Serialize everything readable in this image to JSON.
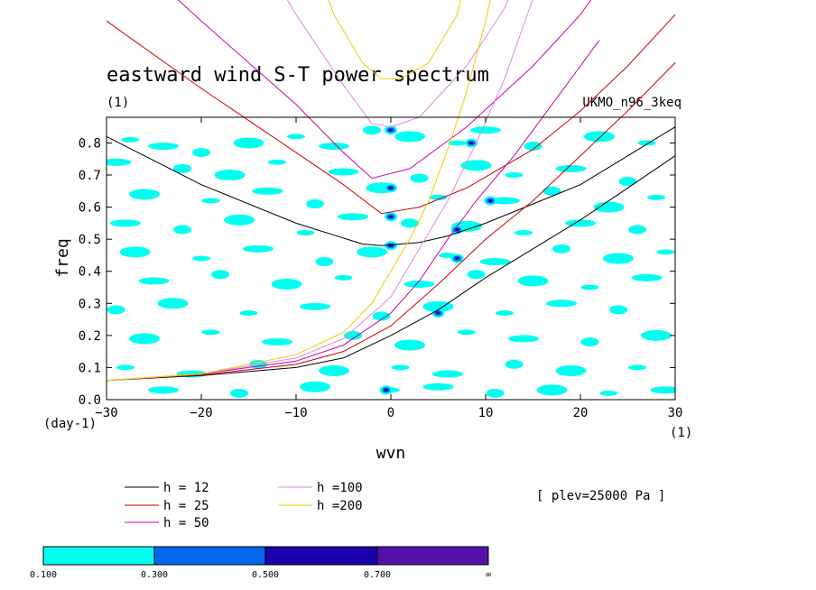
{
  "chart_data": {
    "type": "contour",
    "title": "eastward wind S-T power spectrum",
    "subtitle": "(1)",
    "dataset": "UKMO_n96_3keq",
    "note": "[ plev=25000 Pa ]",
    "xlabel": "wvn",
    "ylabel": "freq",
    "x_unit": "(1)",
    "y_unit": "(day-1)",
    "xlim": [
      -30,
      30
    ],
    "ylim": [
      0,
      0.88
    ],
    "x_ticks": [
      -30,
      -20,
      -10,
      0,
      10,
      20,
      30
    ],
    "x_tick_labels": [
      "−30",
      "−20",
      "−10",
      "0",
      "10",
      "20",
      "30"
    ],
    "y_ticks": [
      0.0,
      0.1,
      0.2,
      0.3,
      0.4,
      0.5,
      0.6,
      0.7,
      0.8
    ],
    "y_tick_labels": [
      "0.0",
      "0.1",
      "0.2",
      "0.3",
      "0.4",
      "0.5",
      "0.6",
      "0.7",
      "0.8"
    ],
    "series": [
      {
        "name": "h = 12",
        "color": "#000000",
        "curves": [
          {
            "x": [
              -30,
              -20,
              -10,
              -3,
              -1,
              3,
              6,
              10,
              20,
              30
            ],
            "y": [
              0.82,
              0.67,
              0.55,
              0.485,
              0.48,
              0.49,
              0.51,
              0.55,
              0.67,
              0.85
            ]
          },
          {
            "x": [
              -30,
              -20,
              -10,
              -5,
              0,
              5,
              10,
              15,
              20,
              25,
              30
            ],
            "y": [
              0.06,
              0.075,
              0.1,
              0.13,
              0.2,
              0.28,
              0.38,
              0.47,
              0.56,
              0.66,
              0.76
            ]
          }
        ]
      },
      {
        "name": "h = 25",
        "color": "#cc0000",
        "curves": [
          {
            "x": [
              -30,
              -20,
              -10,
              -5,
              -1,
              3,
              8,
              15,
              20,
              25,
              30
            ],
            "y": [
              1.18,
              0.97,
              0.77,
              0.67,
              0.58,
              0.6,
              0.66,
              0.78,
              0.9,
              1.04,
              1.2
            ]
          },
          {
            "x": [
              -30,
              -20,
              -10,
              -5,
              0,
              5,
              10,
              15,
              20,
              25,
              30
            ],
            "y": [
              0.06,
              0.077,
              0.11,
              0.15,
              0.23,
              0.36,
              0.5,
              0.62,
              0.76,
              0.9,
              1.05
            ]
          }
        ]
      },
      {
        "name": "h = 50",
        "color": "#cc00aa",
        "curves": [
          {
            "x": [
              -30,
              -20,
              -10,
              -5,
              -2,
              2,
              8,
              15,
              20,
              26
            ],
            "y": [
              1.45,
              1.18,
              0.92,
              0.77,
              0.69,
              0.72,
              0.85,
              1.04,
              1.2,
              1.45
            ]
          },
          {
            "x": [
              -30,
              -20,
              -10,
              -5,
              0,
              3,
              6,
              9,
              13,
              17,
              22
            ],
            "y": [
              0.06,
              0.08,
              0.12,
              0.17,
              0.27,
              0.37,
              0.5,
              0.62,
              0.76,
              0.92,
              1.12
            ]
          }
        ]
      },
      {
        "name": "h =100",
        "color": "#dd88dd",
        "curves": [
          {
            "x": [
              -15,
              -10,
              -5,
              -2,
              0,
              3,
              8,
              12,
              15
            ],
            "y": [
              1.45,
              1.2,
              0.98,
              0.86,
              0.85,
              0.88,
              1.04,
              1.22,
              1.45
            ]
          },
          {
            "x": [
              -30,
              -20,
              -10,
              -5,
              0,
              3,
              6,
              9,
              12,
              15
            ],
            "y": [
              0.06,
              0.08,
              0.13,
              0.19,
              0.32,
              0.47,
              0.62,
              0.8,
              1.0,
              1.25
            ]
          }
        ]
      },
      {
        "name": "h =200",
        "color": "#eecc00",
        "curves": [
          {
            "x": [
              -9,
              -6,
              -3,
              -1,
              1,
              4,
              7,
              9
            ],
            "y": [
              1.45,
              1.2,
              1.05,
              1.0,
              1.0,
              1.05,
              1.2,
              1.45
            ]
          },
          {
            "x": [
              -30,
              -20,
              -10,
              -5,
              -2,
              0,
              2,
              4,
              6,
              8,
              10,
              12
            ],
            "y": [
              0.06,
              0.08,
              0.14,
              0.21,
              0.3,
              0.4,
              0.5,
              0.62,
              0.78,
              0.96,
              1.18,
              1.45
            ]
          }
        ]
      }
    ],
    "colorbar": {
      "levels": [
        "0.100",
        "0.300",
        "0.500",
        "0.700",
        "∞"
      ],
      "colors": [
        "#00ffee",
        "#0066ee",
        "#1a00aa",
        "#5511aa"
      ]
    },
    "patches_level1": [
      [
        -27.5,
        0.81
      ],
      [
        -24,
        0.79
      ],
      [
        -20,
        0.77
      ],
      [
        -15,
        0.8
      ],
      [
        -10,
        0.82
      ],
      [
        -6,
        0.79
      ],
      [
        -2,
        0.84
      ],
      [
        2,
        0.82
      ],
      [
        7,
        0.8
      ],
      [
        10,
        0.84
      ],
      [
        15,
        0.79
      ],
      [
        22,
        0.82
      ],
      [
        27,
        0.8
      ],
      [
        -29,
        0.74
      ],
      [
        -22,
        0.72
      ],
      [
        -17,
        0.7
      ],
      [
        -12,
        0.74
      ],
      [
        -5,
        0.71
      ],
      [
        3,
        0.69
      ],
      [
        9,
        0.73
      ],
      [
        13,
        0.7
      ],
      [
        19,
        0.72
      ],
      [
        25,
        0.68
      ],
      [
        -26,
        0.64
      ],
      [
        -19,
        0.62
      ],
      [
        -13,
        0.65
      ],
      [
        -8,
        0.61
      ],
      [
        -1,
        0.66
      ],
      [
        5,
        0.63
      ],
      [
        12,
        0.62
      ],
      [
        17,
        0.65
      ],
      [
        23,
        0.6
      ],
      [
        28,
        0.63
      ],
      [
        -28,
        0.55
      ],
      [
        -22,
        0.53
      ],
      [
        -16,
        0.56
      ],
      [
        -9,
        0.52
      ],
      [
        -4,
        0.57
      ],
      [
        2,
        0.55
      ],
      [
        8,
        0.54
      ],
      [
        14,
        0.52
      ],
      [
        20,
        0.55
      ],
      [
        26,
        0.53
      ],
      [
        -27,
        0.46
      ],
      [
        -20,
        0.44
      ],
      [
        -14,
        0.47
      ],
      [
        -7,
        0.43
      ],
      [
        -2,
        0.46
      ],
      [
        6,
        0.45
      ],
      [
        11,
        0.43
      ],
      [
        18,
        0.47
      ],
      [
        24,
        0.44
      ],
      [
        29,
        0.46
      ],
      [
        -25,
        0.37
      ],
      [
        -18,
        0.39
      ],
      [
        -11,
        0.36
      ],
      [
        -5,
        0.38
      ],
      [
        3,
        0.36
      ],
      [
        9,
        0.39
      ],
      [
        15,
        0.37
      ],
      [
        21,
        0.35
      ],
      [
        27,
        0.38
      ],
      [
        -29,
        0.28
      ],
      [
        -23,
        0.3
      ],
      [
        -15,
        0.27
      ],
      [
        -8,
        0.29
      ],
      [
        -1,
        0.26
      ],
      [
        5,
        0.29
      ],
      [
        12,
        0.27
      ],
      [
        18,
        0.3
      ],
      [
        24,
        0.28
      ],
      [
        -26,
        0.19
      ],
      [
        -19,
        0.21
      ],
      [
        -12,
        0.18
      ],
      [
        -4,
        0.2
      ],
      [
        2,
        0.17
      ],
      [
        8,
        0.21
      ],
      [
        14,
        0.19
      ],
      [
        21,
        0.18
      ],
      [
        28,
        0.2
      ],
      [
        -28,
        0.1
      ],
      [
        -21,
        0.08
      ],
      [
        -14,
        0.11
      ],
      [
        -6,
        0.09
      ],
      [
        1,
        0.1
      ],
      [
        6,
        0.08
      ],
      [
        13,
        0.11
      ],
      [
        19,
        0.09
      ],
      [
        26,
        0.1
      ],
      [
        -24,
        0.03
      ],
      [
        -16,
        0.02
      ],
      [
        -8,
        0.04
      ],
      [
        0,
        0.03
      ],
      [
        5,
        0.04
      ],
      [
        11,
        0.02
      ],
      [
        17,
        0.03
      ],
      [
        23,
        0.02
      ],
      [
        29,
        0.03
      ]
    ],
    "patches_level2": [
      [
        0,
        0.84
      ],
      [
        0,
        0.66
      ],
      [
        0,
        0.57
      ],
      [
        0,
        0.48
      ],
      [
        7,
        0.53
      ],
      [
        8.5,
        0.8
      ],
      [
        10.5,
        0.62
      ],
      [
        5,
        0.27
      ],
      [
        7,
        0.44
      ],
      [
        -0.5,
        0.03
      ]
    ]
  }
}
